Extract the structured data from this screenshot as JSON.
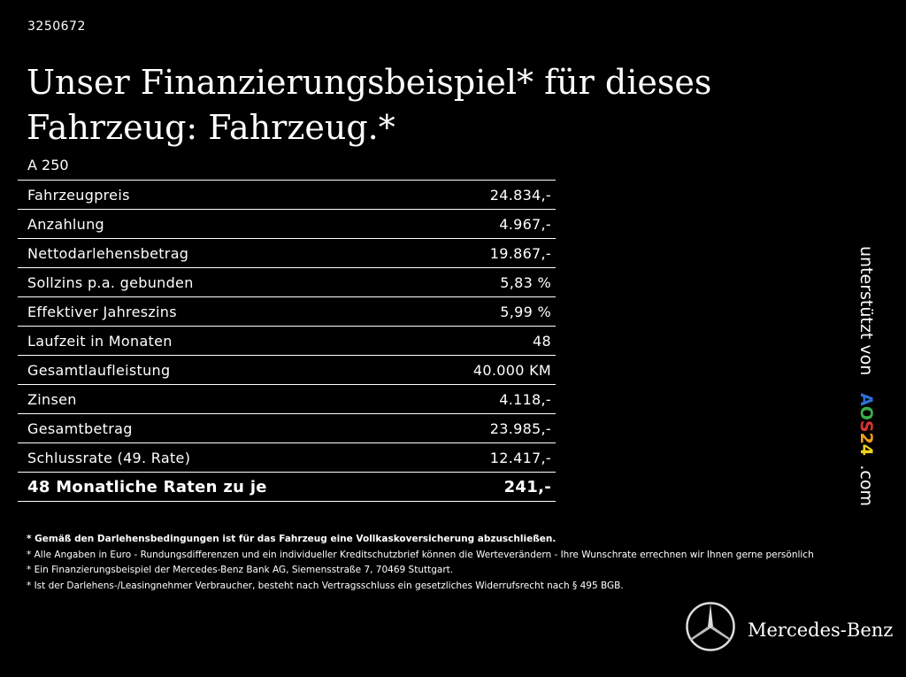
{
  "reference_number": "3250672",
  "title": "Unser Finanzierungsbeispiel* für dieses Fahrzeug: Fahrzeug.*",
  "model": "A 250",
  "rows": [
    {
      "label": "Fahrzeugpreis",
      "value": "24.834,-"
    },
    {
      "label": "Anzahlung",
      "value": "4.967,-"
    },
    {
      "label": "Nettodarlehensbetrag",
      "value": "19.867,-"
    },
    {
      "label": "Sollzins p.a. gebunden",
      "value": "5,83 %"
    },
    {
      "label": "Effektiver Jahreszins",
      "value": "5,99 %"
    },
    {
      "label": "Laufzeit in Monaten",
      "value": "48"
    },
    {
      "label": "Gesamtlaufleistung",
      "value": "40.000 KM"
    },
    {
      "label": "Zinsen",
      "value": "4.118,-"
    },
    {
      "label": "Gesamtbetrag",
      "value": "23.985,-"
    },
    {
      "label": "Schlussrate (49. Rate)",
      "value": "12.417,-"
    },
    {
      "label": "48 Monatliche Raten zu je",
      "value": "241,-"
    }
  ],
  "footnotes": [
    "* Gemäß den Darlehensbedingungen ist für das Fahrzeug eine Vollkaskoversicherung abzuschließen.",
    "* Alle Angaben in Euro - Rundungsdifferenzen und ein individueller Kreditschutzbrief können die Werteverändern - Ihre Wunschrate errechnen wir Ihnen gerne persönlich",
    "* Ein Finanzierungsbeispiel der Mercedes-Benz Bank AG, Siemensstraße 7, 70469 Stuttgart.",
    "* Ist der Darlehens-/Leasingnehmer Verbraucher, besteht nach Vertragsschluss ein gesetzliches Widerrufsrecht nach § 495 BGB."
  ],
  "sponsor": {
    "prefix": "unterstützt von",
    "brand_letters": [
      "A",
      "O",
      "S",
      "2",
      "4"
    ],
    "brand_colors": [
      "#2f6fd6",
      "#3cae4b",
      "#e0322c",
      "#f0a020",
      "#f2d21a"
    ],
    "suffix": ".com"
  },
  "brand": "Mercedes-Benz"
}
